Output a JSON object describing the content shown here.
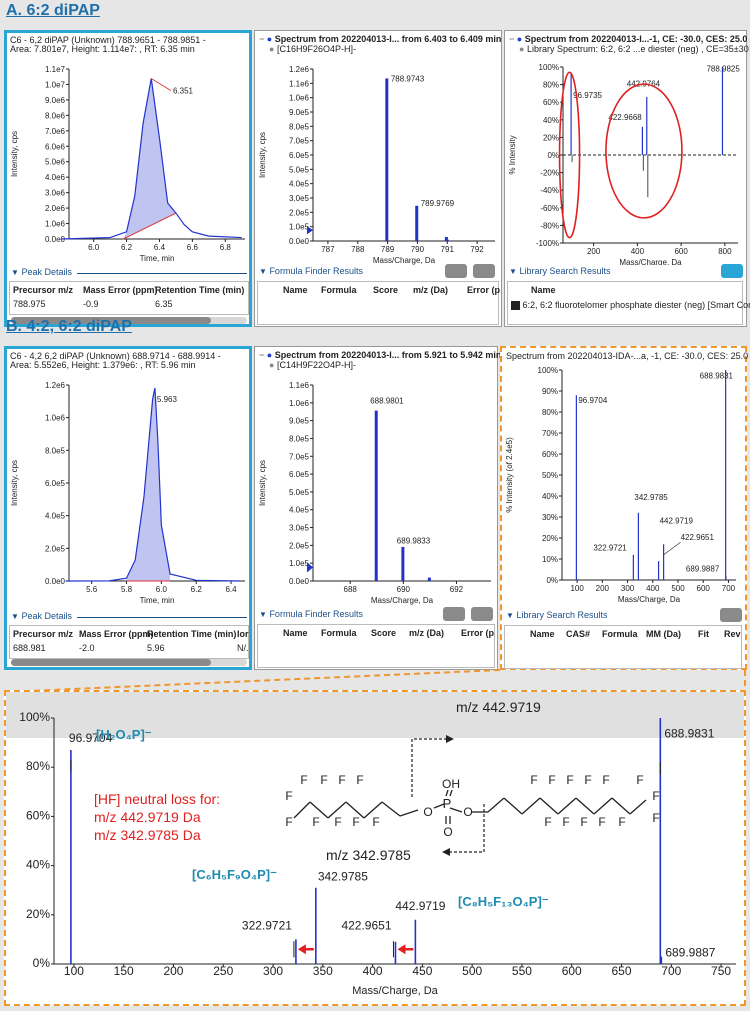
{
  "sections": {
    "a_title": "A. 6:2 diPAP",
    "b_title": "B. 4:2, 6:2 diPAP"
  },
  "panelA": {
    "xic": {
      "title1": "C6 - 6,2 diPAP (Unknown) 788.9651 - 788.9851 -",
      "title2": "Area: 7.801e7, Height: 1.114e7: , RT: 6.35 min",
      "ylabel": "Intensity, cps",
      "xlabel": "Time, min",
      "peak_label": "6.351"
    },
    "spec": {
      "title1": "Spectrum from 202204013-I... from 6.403 to 6.409 min",
      "title2": "[C16H9F26O4P-H]-",
      "ylabel": "Intensity, cps",
      "xlabel": "Mass/Charge, Da",
      "labels": [
        "788.9743",
        "789.9769"
      ]
    },
    "lib": {
      "title1": "Spectrum from 202204013-I...-1, CE: -30.0, CES: 25.0",
      "title2": "Library Spectrum: 6:2, 6:2 ...e diester (neg) , CE=35±30",
      "ylabel": "% Intensity",
      "xlabel": "Mass/Charge, Da",
      "labels": [
        "96.9735",
        "442.9764",
        "422.9668",
        "788.9825"
      ]
    },
    "peak_details": {
      "title": "Peak Details",
      "headers": [
        "Precursor m/z",
        "Mass Error (ppm)",
        "Retention Time (min)"
      ],
      "row": [
        "788.975",
        "-0.9",
        "6.35"
      ]
    },
    "formula_finder": {
      "title": "Formula Finder Results",
      "headers": [
        "Name",
        "Formula",
        "Score",
        "m/z (Da)",
        "Error (p"
      ]
    },
    "library_search": {
      "title": "Library Search Results",
      "headers": [
        "Name"
      ],
      "row": "6:2, 6:2 fluorotelomer phosphate diester (neg) [Smart Conf"
    }
  },
  "panelB": {
    "xic": {
      "title1": "C6 - 4,2 6,2 diPAP (Unknown) 688.9714 - 688.9914 -",
      "title2": "Area: 5.552e6, Height: 1.379e6: , RT: 5.96 min",
      "ylabel": "Intensity, cps",
      "xlabel": "Time, min",
      "peak_label": "5.963"
    },
    "spec": {
      "title1": "Spectrum from 202204013-I... from 5.921 to 5.942 min",
      "title2": "[C14H9F22O4P-H]-",
      "ylabel": "Intensity, cps",
      "xlabel": "Mass/Charge, Da",
      "labels": [
        "688.9801",
        "689.9833"
      ]
    },
    "lib": {
      "title1": "Spectrum from 202204013-IDA-...a, -1, CE: -30.0, CES: 25.0",
      "ylabel": "% Intensity (of 2.4e5)",
      "xlabel": "Mass/Charge, Da",
      "labels": [
        "96.9704",
        "688.9831",
        "342.9785",
        "442.9719",
        "322.9721",
        "422.9651",
        "689.9887"
      ]
    },
    "peak_details": {
      "title": "Peak Details",
      "headers": [
        "Precursor m/z",
        "Mass Error (ppm)",
        "Retention Time (min)",
        "Ior"
      ],
      "row": [
        "688.981",
        "-2.0",
        "5.96",
        "N/."
      ]
    },
    "formula_finder": {
      "title": "Formula Finder Results",
      "headers": [
        "Name",
        "Formula",
        "Score",
        "m/z (Da)",
        "Error (p"
      ]
    },
    "library_search": {
      "title": "Library Search Results",
      "headers": [
        "Name",
        "CAS#",
        "Formula",
        "MM (Da)",
        "Fit",
        "Rev"
      ]
    }
  },
  "zoom": {
    "ion_h2o4p": "[H₂O₄P]⁻",
    "ion_c6": "[C₆H₅F₉O₄P]⁻",
    "ion_c8": "[C₈H₅F₁₃O₄P]⁻",
    "hf_line1": "[HF] neutral loss for:",
    "hf_line2": "m/z 442.9719 Da",
    "hf_line3": "m/z 342.9785 Da",
    "frag_top": "m/z 442.9719",
    "frag_bottom": "m/z 342.9785",
    "xlabel": "Mass/Charge, Da",
    "structure": {
      "OH": "OH",
      "P": "P",
      "O": "O",
      "F": "F"
    }
  },
  "chart_data": [
    {
      "id": "A-xic",
      "type": "line",
      "x": [
        5.8,
        6.1,
        6.2,
        6.25,
        6.3,
        6.35,
        6.4,
        6.45,
        6.5,
        6.55,
        6.6,
        6.7,
        6.9
      ],
      "y": [
        0,
        100000.0,
        500000.0,
        3000000.0,
        8000000.0,
        11140000.0,
        7000000.0,
        2500000.0,
        1800000.0,
        1000000.0,
        500000.0,
        200000.0,
        100000.0
      ],
      "xlabel": "Time, min",
      "ylabel": "Intensity, cps",
      "xticks": [
        6.0,
        6.2,
        6.4,
        6.6,
        6.8
      ],
      "yticks": [
        "0.0e0",
        "1.0e6",
        "2.0e6",
        "3.0e6",
        "4.0e6",
        "5.0e6",
        "6.0e6",
        "7.0e6",
        "8.0e6",
        "9.0e6",
        "1.0e7",
        "1.1e7"
      ],
      "xlim": [
        5.85,
        6.92
      ],
      "ylim": [
        0,
        11800000.0
      ]
    },
    {
      "id": "A-spec",
      "type": "bar",
      "x": [
        788.9743,
        789.9769,
        790.97,
        791.0
      ],
      "y": [
        1200000.0,
        260000.0,
        30000.0,
        10000.0
      ],
      "xlabel": "Mass/Charge, Da",
      "ylabel": "Intensity, cps",
      "xticks": [
        787,
        788,
        789,
        790,
        791,
        792
      ],
      "yticks": [
        "0.0e0",
        "1.0e5",
        "2.0e5",
        "3.0e5",
        "4.0e5",
        "5.0e5",
        "6.0e5",
        "7.0e5",
        "8.0e5",
        "9.0e5",
        "1.0e6",
        "1.1e6",
        "1.2e6"
      ],
      "xlim": [
        786.5,
        792.6
      ],
      "ylim": [
        0,
        1270000.0
      ]
    },
    {
      "id": "A-lib",
      "type": "bar",
      "x": [
        96.9735,
        422.9668,
        442.9764,
        788.9825
      ],
      "y": [
        92,
        32,
        66,
        100
      ],
      "y_library": [
        -8,
        -18,
        -48,
        0
      ],
      "xlabel": "Mass/Charge, Da",
      "ylabel": "% Intensity",
      "xticks": [
        200,
        400,
        600,
        800
      ],
      "yticks": [
        "-100%",
        "-80%",
        "-60%",
        "-40%",
        "-20%",
        "0%",
        "20%",
        "40%",
        "60%",
        "80%",
        "100%"
      ],
      "xlim": [
        60,
        860
      ],
      "ylim": [
        -100,
        100
      ]
    },
    {
      "id": "B-xic",
      "type": "line",
      "x": [
        5.45,
        5.7,
        5.8,
        5.85,
        5.9,
        5.95,
        5.963,
        5.98,
        6.0,
        6.05,
        6.2,
        6.45
      ],
      "y": [
        0,
        1000.0,
        20000.0,
        150000.0,
        600000.0,
        1300000.0,
        1379000.0,
        1000000.0,
        400000.0,
        50000.0,
        5000.0,
        0
      ],
      "xlabel": "Time, min",
      "ylabel": "Intensity, cps",
      "xticks": [
        5.6,
        5.8,
        6.0,
        6.2,
        6.4
      ],
      "yticks": [
        "0.0e0",
        "2.0e5",
        "4.0e5",
        "6.0e5",
        "8.0e5",
        "1.0e6",
        "1.2e6"
      ],
      "xlim": [
        5.47,
        6.48
      ],
      "ylim": [
        0,
        1400000.0
      ]
    },
    {
      "id": "B-spec",
      "type": "bar",
      "x": [
        688.9801,
        689.9833,
        690.98
      ],
      "y": [
        1000000.0,
        200000.0,
        20000.0
      ],
      "xlabel": "Mass/Charge, Da",
      "ylabel": "Intensity, cps",
      "xticks": [
        688,
        690,
        692
      ],
      "yticks": [
        "0.0e0",
        "1.0e5",
        "2.0e5",
        "3.0e5",
        "4.0e5",
        "5.0e5",
        "6.0e5",
        "7.0e5",
        "8.0e5",
        "9.0e5",
        "1.0e6",
        "1.1e6"
      ],
      "xlim": [
        686.6,
        693.3
      ],
      "ylim": [
        0,
        1150000.0
      ]
    },
    {
      "id": "B-lib",
      "type": "bar",
      "x": [
        96.9704,
        322.9721,
        342.9785,
        422.9651,
        442.9719,
        688.9831,
        689.9887
      ],
      "y": [
        88,
        12,
        32,
        9,
        17,
        100,
        2
      ],
      "xlabel": "Mass/Charge, Da",
      "ylabel": "% Intensity (of 2.4e5)",
      "xticks": [
        100,
        200,
        300,
        400,
        500,
        600,
        700
      ],
      "yticks": [
        "0%",
        "10%",
        "20%",
        "30%",
        "40%",
        "50%",
        "60%",
        "70%",
        "80%",
        "90%",
        "100%"
      ],
      "xlim": [
        40,
        730
      ],
      "ylim": [
        0,
        100
      ]
    },
    {
      "id": "zoom",
      "type": "bar",
      "x": [
        96.9704,
        322.9721,
        342.9785,
        422.9651,
        442.9719,
        688.9831,
        689.9887
      ],
      "y": [
        87,
        10,
        31,
        9,
        18,
        100,
        3
      ],
      "labels": [
        "96.9704",
        "322.9721",
        "342.9785",
        "422.9651",
        "442.9719",
        "688.9831",
        "689.9887"
      ],
      "xlabel": "Mass/Charge, Da",
      "xticks": [
        100,
        150,
        200,
        250,
        300,
        350,
        400,
        450,
        500,
        550,
        600,
        650,
        700,
        750
      ],
      "yticks": [
        "0%",
        "20%",
        "40%",
        "60%",
        "80%",
        "100%"
      ],
      "xlim": [
        80,
        765
      ],
      "ylim": [
        0,
        100
      ]
    }
  ]
}
